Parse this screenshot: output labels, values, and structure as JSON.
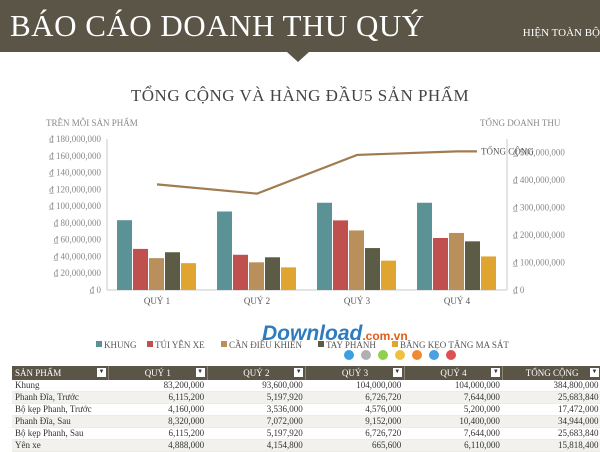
{
  "header": {
    "title": "BÁO CÁO DOANH THU QUÝ",
    "right_text": "HIỆN TOÀN BỘ"
  },
  "chart_title": "TỔNG CỘNG VÀ HÀNG ĐẦU5 SẢN PHẨM",
  "left_axis_title": "TRÊN MỖI SẢN PHẨM",
  "right_axis_title": "TỔNG DOANH THU",
  "chart_data": {
    "type": "bar",
    "categories": [
      "QUÝ 1",
      "QUÝ 2",
      "QUÝ 3",
      "QUÝ 4"
    ],
    "series": [
      {
        "name": "KHUNG",
        "values": [
          83200000,
          93600000,
          104000000,
          104000000
        ],
        "color": "#5b9296"
      },
      {
        "name": "TÚI YÊN XE",
        "values": [
          49000000,
          42000000,
          83000000,
          62000000
        ],
        "color": "#c0504d"
      },
      {
        "name": "CẦN ĐIỀU KHIỂN",
        "values": [
          38000000,
          33000000,
          71000000,
          68000000
        ],
        "color": "#b98f5c"
      },
      {
        "name": "TAY PHANH",
        "values": [
          45000000,
          39000000,
          50000000,
          58000000
        ],
        "color": "#5c5b45"
      },
      {
        "name": "BĂNG KẸO TĂNG MA SÁT",
        "values": [
          32000000,
          27000000,
          35000000,
          40000000
        ],
        "color": "#e0a431"
      }
    ],
    "line": {
      "name": "TỔNG CỘNG",
      "values": [
        384800000,
        351000000,
        492000000,
        505000000
      ],
      "color": "#a07c50"
    },
    "left_ticks": [
      "₫ 0",
      "₫ 20,000,000",
      "₫ 40,000,000",
      "₫ 60,000,000",
      "₫ 80,000,000",
      "₫ 100,000,000",
      "₫ 120,000,000",
      "₫ 140,000,000",
      "₫ 160,000,000",
      "₫ 180,000,000"
    ],
    "right_ticks": [
      "₫ 0",
      "₫ 100,000,000",
      "₫ 200,000,000",
      "₫ 300,000,000",
      "₫ 400,000,000",
      "₫ 500,000,000"
    ],
    "ylim": [
      0,
      180000000
    ],
    "y2lim": [
      0,
      550000000
    ],
    "legend_position": "bottom"
  },
  "watermark": {
    "main": "Download",
    "domain": ".com.vn"
  },
  "watermark_dots": [
    "#3aa0e0",
    "#b0b0b0",
    "#8fd14f",
    "#f0c040",
    "#f08a30",
    "#4aa0e0",
    "#e05050"
  ],
  "table": {
    "headers": [
      "SẢN PHẨM",
      "QUÝ 1",
      "QUÝ 2",
      "QUÝ 3",
      "QUÝ 4",
      "TỔNG CỘNG"
    ],
    "rows": [
      [
        "Khung",
        "83,200,000",
        "93,600,000",
        "104,000,000",
        "104,000,000",
        "384,800,000"
      ],
      [
        "Phanh Đĩa, Trước",
        "6,115,200",
        "5,197,920",
        "6,726,720",
        "7,644,000",
        "25,683,840"
      ],
      [
        "Bộ kẹp Phanh, Trước",
        "4,160,000",
        "3,536,000",
        "4,576,000",
        "5,200,000",
        "17,472,000"
      ],
      [
        "Phanh Đĩa, Sau",
        "8,320,000",
        "7,072,000",
        "9,152,000",
        "10,400,000",
        "34,944,000"
      ],
      [
        "Bộ kẹp Phanh, Sau",
        "6,115,200",
        "5,197,920",
        "6,726,720",
        "7,644,000",
        "25,683,840"
      ],
      [
        "Yên xe",
        "4,888,000",
        "4,154,800",
        "665,600",
        "6,110,000",
        "15,818,400"
      ]
    ]
  }
}
